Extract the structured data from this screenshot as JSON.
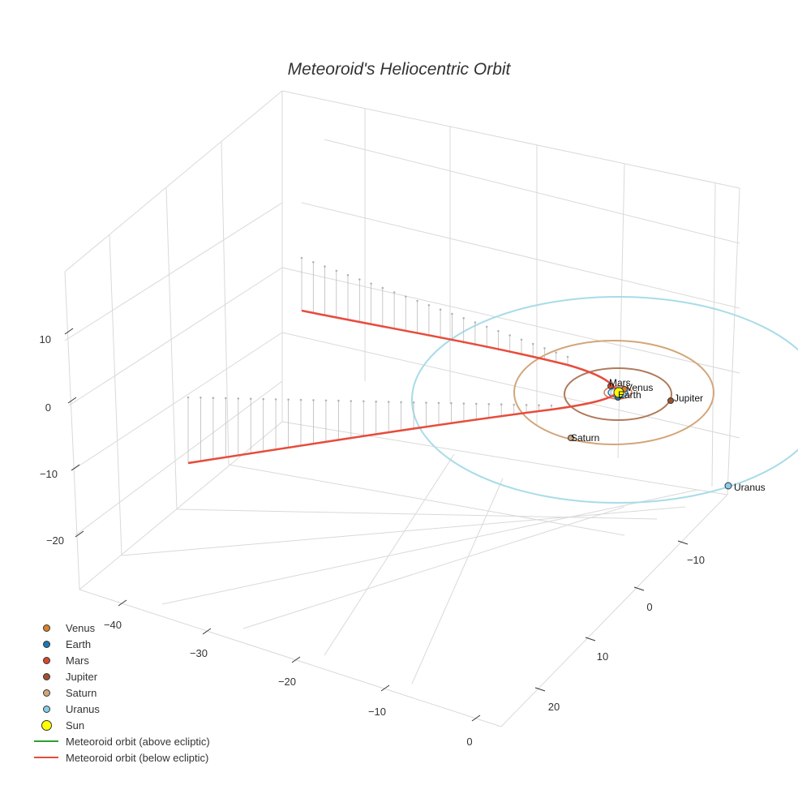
{
  "chart_data": {
    "type": "scatter3d",
    "title": "Meteoroid's Heliocentric Orbit",
    "x_ticks": [
      "−40",
      "−30",
      "−20",
      "−10",
      "0"
    ],
    "y_ticks": [
      "−10",
      "0",
      "10",
      "20"
    ],
    "z_ticks": [
      "10",
      "0",
      "−10",
      "−20"
    ],
    "planets": [
      {
        "name": "Venus",
        "color": "#d9822b",
        "orbit_radius_au": 0.72,
        "label": "Venus"
      },
      {
        "name": "Earth",
        "color": "#1f77b4",
        "orbit_radius_au": 1.0,
        "label": "Earth"
      },
      {
        "name": "Mars",
        "color": "#d64a2a",
        "orbit_radius_au": 1.52,
        "label": "Mars"
      },
      {
        "name": "Jupiter",
        "color": "#a0522d",
        "orbit_radius_au": 5.2,
        "label": "Jupiter"
      },
      {
        "name": "Saturn",
        "color": "#d2a679",
        "orbit_radius_au": 9.54,
        "label": "Saturn"
      },
      {
        "name": "Uranus",
        "color": "#87ceeb",
        "orbit_radius_au": 19.2,
        "label": "Uranus"
      }
    ],
    "sun": {
      "name": "Sun",
      "color": "#ffff00"
    },
    "series": [
      {
        "name": "Meteoroid orbit (above ecliptic)",
        "color": "#2ca02c"
      },
      {
        "name": "Meteoroid orbit (below ecliptic)",
        "color": "#e74c3c"
      }
    ]
  }
}
